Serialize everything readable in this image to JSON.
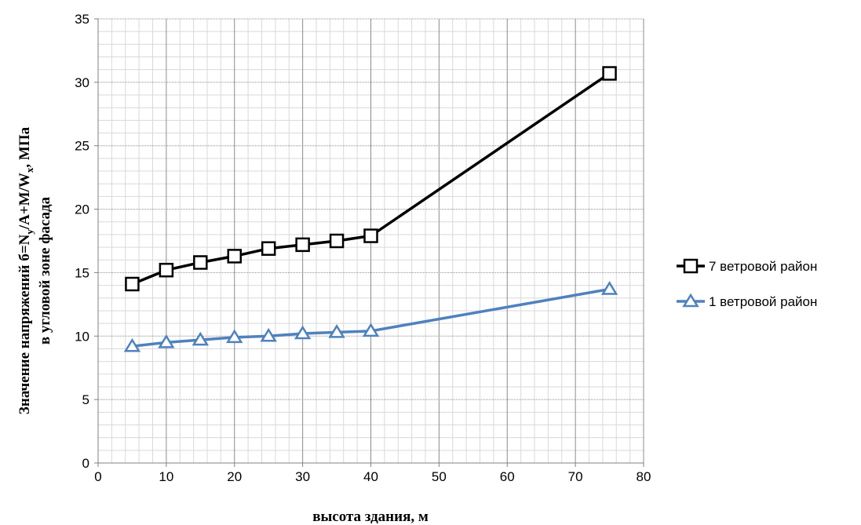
{
  "chart_data": {
    "type": "line",
    "title": "",
    "xlabel": "высота здания, м",
    "ylabel": {
      "line1_prefix": "Значение напряжений",
      "line1_formula_a": "б=N",
      "line1_sub_y": "y",
      "line1_formula_b": "/A+M/W",
      "line1_sub_x": "x",
      "line1_suffix": ", МПа",
      "line2": "в угловой зоне фасада"
    },
    "xlim": [
      0,
      80
    ],
    "ylim": [
      0,
      35
    ],
    "xticks": [
      0,
      10,
      20,
      30,
      40,
      50,
      60,
      70,
      80
    ],
    "yticks": [
      0,
      5,
      10,
      15,
      20,
      25,
      30,
      35
    ],
    "grid": {
      "major": true,
      "minor": true,
      "x_minor_step": 2,
      "y_minor_step": 1
    },
    "legend": {
      "position": "right"
    },
    "series": [
      {
        "name": "7 ветровой район",
        "color": "#000000",
        "marker": "square",
        "points": [
          {
            "x": 5,
            "y": 14.1
          },
          {
            "x": 10,
            "y": 15.2
          },
          {
            "x": 15,
            "y": 15.8
          },
          {
            "x": 20,
            "y": 16.3
          },
          {
            "x": 25,
            "y": 16.9
          },
          {
            "x": 30,
            "y": 17.2
          },
          {
            "x": 35,
            "y": 17.5
          },
          {
            "x": 40,
            "y": 17.9
          },
          {
            "x": 75,
            "y": 30.7
          }
        ]
      },
      {
        "name": "1 ветровой район",
        "color": "#4f81bd",
        "marker": "triangle",
        "points": [
          {
            "x": 5,
            "y": 9.2
          },
          {
            "x": 10,
            "y": 9.5
          },
          {
            "x": 15,
            "y": 9.7
          },
          {
            "x": 20,
            "y": 9.9
          },
          {
            "x": 25,
            "y": 10.0
          },
          {
            "x": 30,
            "y": 10.2
          },
          {
            "x": 35,
            "y": 10.3
          },
          {
            "x": 40,
            "y": 10.4
          },
          {
            "x": 75,
            "y": 13.7
          }
        ]
      }
    ]
  }
}
